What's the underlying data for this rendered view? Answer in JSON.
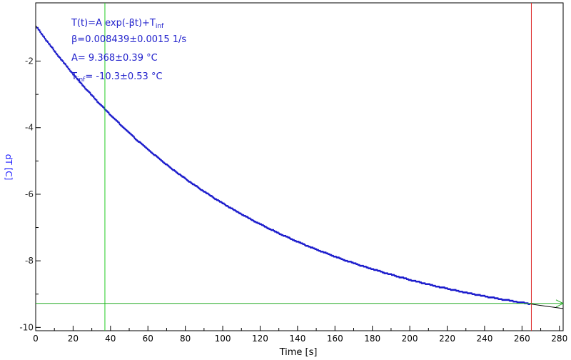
{
  "chart_data": {
    "type": "scatter",
    "xlabel": "Time [s]",
    "ylabel": "dT [C]",
    "xlim": [
      0,
      282
    ],
    "ylim": [
      -10.1,
      -0.25
    ],
    "xticks": [
      0,
      20,
      40,
      60,
      80,
      100,
      120,
      140,
      160,
      180,
      200,
      220,
      240,
      260,
      280
    ],
    "yticks": [
      -10,
      -8,
      -6,
      -4,
      -2
    ],
    "grid": false,
    "fit_model": {
      "A": 9.368,
      "beta": 0.008439,
      "T_inf": -10.3
    },
    "fit_range": [
      0,
      282
    ],
    "data_range": [
      1,
      264
    ],
    "cursor_vertical_left": 37,
    "cursor_vertical_right": 265,
    "cursor_horizontal": -9.28,
    "colors": {
      "data": "#1a1acc",
      "fit": "#000000",
      "left_cursor": "#22cc22",
      "right_cursor": "#dd2222",
      "horizontal_cursor": "#22aa22",
      "annotation": "#2222cc"
    },
    "annotations": {
      "line1_main": "T(t)=A exp(-βt)+T",
      "line1_sub": "inf",
      "line2": "β=0.008439±0.0015 1/s",
      "line3": "A= 9.368±0.39 °C",
      "line4_main": "T",
      "line4_sub": "inf",
      "line4_rest": "= -10.3±0.53 °C"
    }
  }
}
